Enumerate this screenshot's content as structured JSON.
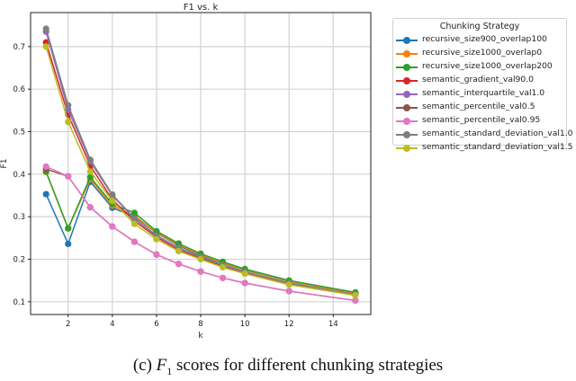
{
  "chart_data": {
    "type": "line",
    "title": "F1 vs. k",
    "xlabel": "k",
    "ylabel": "F1",
    "x": [
      1,
      2,
      3,
      4,
      5,
      6,
      7,
      8,
      9,
      10,
      12,
      15
    ],
    "xticks": [
      2,
      4,
      6,
      8,
      10,
      12,
      14
    ],
    "yticks": [
      0.1,
      0.2,
      0.3,
      0.4,
      0.5,
      0.6,
      0.7
    ],
    "xlim": [
      0.3,
      15.7
    ],
    "ylim": [
      0.07,
      0.78
    ],
    "grid": true,
    "legend_title": "Chunking Strategy",
    "legend_position": "outside upper right",
    "series": [
      {
        "name": "recursive_size900_overlap100",
        "color": "#1f77b4",
        "values": [
          0.353,
          0.236,
          0.382,
          0.321,
          0.3,
          0.262,
          0.232,
          0.208,
          0.19,
          0.174,
          0.148,
          0.12
        ]
      },
      {
        "name": "recursive_size1000_overlap0",
        "color": "#ff7f0e",
        "values": [
          0.405,
          0.272,
          0.388,
          0.326,
          0.302,
          0.263,
          0.234,
          0.21,
          0.191,
          0.175,
          0.148,
          0.12
        ]
      },
      {
        "name": "recursive_size1000_overlap200",
        "color": "#2ca02c",
        "values": [
          0.406,
          0.273,
          0.393,
          0.33,
          0.309,
          0.266,
          0.237,
          0.213,
          0.194,
          0.177,
          0.15,
          0.122
        ]
      },
      {
        "name": "semantic_gradient_val90.0",
        "color": "#d62728",
        "values": [
          0.71,
          0.54,
          0.42,
          0.34,
          0.29,
          0.252,
          0.222,
          0.202,
          0.183,
          0.168,
          0.142,
          0.116
        ]
      },
      {
        "name": "semantic_interquartile_val1.0",
        "color": "#9467bd",
        "values": [
          0.735,
          0.552,
          0.43,
          0.35,
          0.295,
          0.256,
          0.226,
          0.205,
          0.186,
          0.17,
          0.144,
          0.117
        ]
      },
      {
        "name": "semantic_percentile_val0.5",
        "color": "#8c564b",
        "values": [
          0.412,
          0.395,
          0.322,
          0.277,
          0.241,
          0.211,
          0.189,
          0.171,
          0.156,
          0.144,
          0.125,
          0.103
        ]
      },
      {
        "name": "semantic_percentile_val0.95",
        "color": "#e377c2",
        "values": [
          0.418,
          0.395,
          0.322,
          0.277,
          0.241,
          0.211,
          0.189,
          0.171,
          0.156,
          0.144,
          0.125,
          0.103
        ]
      },
      {
        "name": "semantic_standard_deviation_val1.0",
        "color": "#7f7f7f",
        "values": [
          0.742,
          0.562,
          0.434,
          0.352,
          0.296,
          0.256,
          0.227,
          0.205,
          0.186,
          0.17,
          0.144,
          0.117
        ]
      },
      {
        "name": "semantic_standard_deviation_val1.5",
        "color": "#bcbd22",
        "values": [
          0.7,
          0.523,
          0.406,
          0.337,
          0.283,
          0.247,
          0.219,
          0.2,
          0.181,
          0.166,
          0.14,
          0.115
        ]
      }
    ]
  },
  "caption": {
    "prefix": "(c) ",
    "math": "F",
    "sub": "1",
    "suffix": " scores for different chunking strategies"
  }
}
